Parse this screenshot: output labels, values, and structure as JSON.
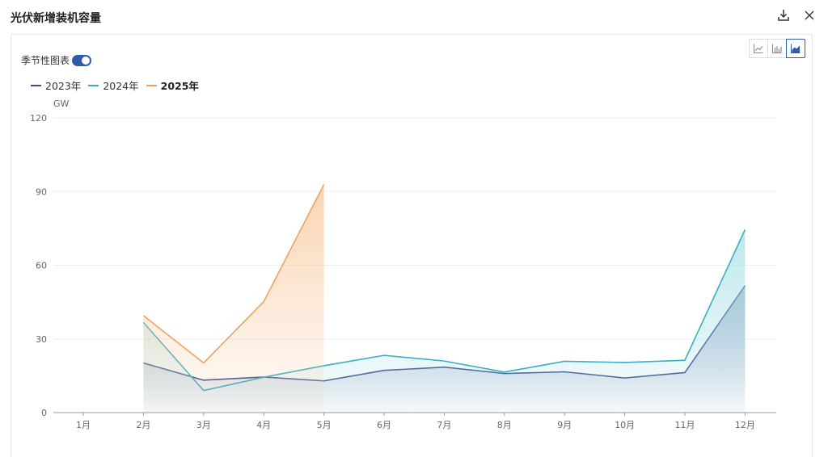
{
  "header": {
    "title": "光伏新增装机容量",
    "download_icon": "download-icon",
    "close_icon": "close-icon"
  },
  "controls": {
    "seasonal_label": "季节性图表",
    "seasonal_on": true,
    "chart_types": [
      "line-chart-icon",
      "bar-chart-icon",
      "area-chart-icon"
    ],
    "active_chart_type": "area-chart-icon"
  },
  "chart_data": {
    "type": "area",
    "title": "光伏新增装机容量",
    "ylabel": "GW",
    "xlabel": "",
    "ylim": [
      0,
      120
    ],
    "yticks": [
      0,
      30,
      60,
      90,
      120
    ],
    "categories": [
      "1月",
      "2月",
      "3月",
      "4月",
      "5月",
      "6月",
      "7月",
      "8月",
      "9月",
      "10月",
      "11月",
      "12月"
    ],
    "grid": true,
    "legend": "top-left",
    "series": [
      {
        "name": "2023年",
        "color": "#3a4e8c",
        "fill": "#8c9dbf",
        "values": [
          null,
          20.2,
          13.2,
          14.5,
          12.9,
          17.2,
          18.5,
          15.9,
          16.6,
          14.1,
          16.3,
          51.7
        ]
      },
      {
        "name": "2024年",
        "color": "#3aaec2",
        "fill": "#a8dfe6",
        "values": [
          null,
          36.7,
          9.0,
          14.4,
          19.1,
          23.3,
          21.0,
          16.5,
          20.9,
          20.4,
          21.3,
          74.5
        ]
      },
      {
        "name": "2025年",
        "color": "#eda35c",
        "fill": "#f7c79a",
        "bold": true,
        "values": [
          null,
          39.5,
          20.2,
          45.2,
          92.9,
          null,
          null,
          null,
          null,
          null,
          null,
          null
        ]
      }
    ]
  }
}
